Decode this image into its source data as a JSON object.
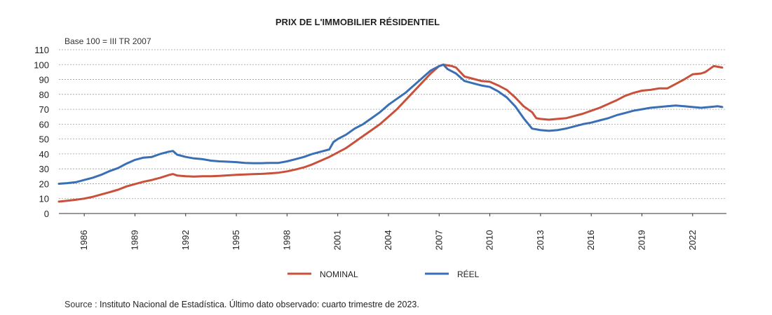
{
  "chart_data": {
    "type": "line",
    "title": "PRIX DE L'IMMOBILIER RÉSIDENTIEL",
    "subtitle": "Base 100 = III TR 2007",
    "source_label": "Source :",
    "source_text": "Instituto Nacional de Estadística. Último dato observado: cuarto trimestre de 2023.",
    "ylim": [
      0,
      110
    ],
    "yticks": [
      0,
      10,
      20,
      30,
      40,
      50,
      60,
      70,
      80,
      90,
      100,
      110
    ],
    "xlim": [
      1984.5,
      2024.0
    ],
    "xticks": [
      "1986",
      "1989",
      "1992",
      "1995",
      "1998",
      "2001",
      "2004",
      "2007",
      "2010",
      "2013",
      "2016",
      "2019",
      "2022"
    ],
    "grid": true,
    "legend": "bottom",
    "series": [
      {
        "name": "NOMINAL",
        "color": "#C9503A",
        "points": [
          [
            1984.5,
            8
          ],
          [
            1985,
            8.6
          ],
          [
            1985.5,
            9.2
          ],
          [
            1986,
            10
          ],
          [
            1986.5,
            11.2
          ],
          [
            1987,
            12.8
          ],
          [
            1987.5,
            14.3
          ],
          [
            1988,
            16
          ],
          [
            1988.5,
            18.2
          ],
          [
            1989,
            19.8
          ],
          [
            1989.5,
            21.3
          ],
          [
            1990,
            22.5
          ],
          [
            1990.5,
            24
          ],
          [
            1991,
            25.8
          ],
          [
            1991.25,
            26.5
          ],
          [
            1991.5,
            25.5
          ],
          [
            1992,
            25
          ],
          [
            1992.5,
            24.8
          ],
          [
            1993,
            25
          ],
          [
            1993.5,
            25
          ],
          [
            1994,
            25.3
          ],
          [
            1994.5,
            25.6
          ],
          [
            1995,
            26
          ],
          [
            1995.5,
            26.2
          ],
          [
            1996,
            26.4
          ],
          [
            1996.5,
            26.6
          ],
          [
            1997,
            27
          ],
          [
            1997.5,
            27.4
          ],
          [
            1998,
            28.3
          ],
          [
            1998.5,
            29.5
          ],
          [
            1999,
            31
          ],
          [
            1999.5,
            33
          ],
          [
            2000,
            35.5
          ],
          [
            2000.5,
            38
          ],
          [
            2001,
            41
          ],
          [
            2001.5,
            44
          ],
          [
            2002,
            48
          ],
          [
            2002.5,
            52
          ],
          [
            2003,
            56
          ],
          [
            2003.5,
            60
          ],
          [
            2004,
            65
          ],
          [
            2004.5,
            70
          ],
          [
            2005,
            76
          ],
          [
            2005.5,
            82
          ],
          [
            2006,
            88
          ],
          [
            2006.5,
            94
          ],
          [
            2007,
            99
          ],
          [
            2007.25,
            100
          ],
          [
            2007.75,
            99
          ],
          [
            2008,
            98
          ],
          [
            2008.5,
            92
          ],
          [
            2009,
            90.5
          ],
          [
            2009.5,
            89
          ],
          [
            2010,
            88.5
          ],
          [
            2010.5,
            86
          ],
          [
            2011,
            83
          ],
          [
            2011.5,
            78
          ],
          [
            2012,
            72
          ],
          [
            2012.5,
            68
          ],
          [
            2012.75,
            64
          ],
          [
            2013,
            63.5
          ],
          [
            2013.5,
            63
          ],
          [
            2014,
            63.5
          ],
          [
            2014.5,
            64
          ],
          [
            2015,
            65.5
          ],
          [
            2015.5,
            67
          ],
          [
            2016,
            69
          ],
          [
            2016.5,
            71
          ],
          [
            2017,
            73.5
          ],
          [
            2017.5,
            76
          ],
          [
            2018,
            79
          ],
          [
            2018.5,
            81
          ],
          [
            2019,
            82.5
          ],
          [
            2019.5,
            83
          ],
          [
            2020,
            84
          ],
          [
            2020.5,
            84
          ],
          [
            2021,
            87
          ],
          [
            2021.5,
            90
          ],
          [
            2022,
            93.5
          ],
          [
            2022.5,
            94
          ],
          [
            2022.75,
            95
          ],
          [
            2023,
            97
          ],
          [
            2023.25,
            99
          ],
          [
            2023.75,
            98
          ]
        ]
      },
      {
        "name": "RÉEL",
        "color": "#3A6FB5",
        "points": [
          [
            1984.5,
            20
          ],
          [
            1985,
            20.4
          ],
          [
            1985.5,
            21
          ],
          [
            1986,
            22.5
          ],
          [
            1986.5,
            24
          ],
          [
            1987,
            26
          ],
          [
            1987.5,
            28.5
          ],
          [
            1988,
            30.5
          ],
          [
            1988.5,
            33.5
          ],
          [
            1989,
            36
          ],
          [
            1989.5,
            37.5
          ],
          [
            1990,
            38
          ],
          [
            1990.5,
            40
          ],
          [
            1991,
            41.5
          ],
          [
            1991.25,
            42
          ],
          [
            1991.5,
            39.5
          ],
          [
            1992,
            38
          ],
          [
            1992.5,
            37
          ],
          [
            1993,
            36.5
          ],
          [
            1993.5,
            35.5
          ],
          [
            1994,
            35
          ],
          [
            1994.5,
            34.8
          ],
          [
            1995,
            34.5
          ],
          [
            1995.5,
            34
          ],
          [
            1996,
            33.8
          ],
          [
            1996.5,
            33.8
          ],
          [
            1997,
            34
          ],
          [
            1997.5,
            34
          ],
          [
            1998,
            35
          ],
          [
            1998.5,
            36.5
          ],
          [
            1999,
            38
          ],
          [
            1999.5,
            40
          ],
          [
            2000,
            41.5
          ],
          [
            2000.5,
            43
          ],
          [
            2000.75,
            48
          ],
          [
            2001,
            50
          ],
          [
            2001.5,
            53
          ],
          [
            2002,
            57
          ],
          [
            2002.5,
            60
          ],
          [
            2003,
            64
          ],
          [
            2003.5,
            68
          ],
          [
            2004,
            73
          ],
          [
            2004.5,
            77
          ],
          [
            2005,
            81
          ],
          [
            2005.5,
            86
          ],
          [
            2006,
            91
          ],
          [
            2006.5,
            96
          ],
          [
            2007,
            99
          ],
          [
            2007.25,
            100
          ],
          [
            2007.5,
            97
          ],
          [
            2008,
            94
          ],
          [
            2008.5,
            89
          ],
          [
            2009,
            87.5
          ],
          [
            2009.5,
            86
          ],
          [
            2010,
            85
          ],
          [
            2010.5,
            82
          ],
          [
            2011,
            78
          ],
          [
            2011.5,
            72
          ],
          [
            2012,
            64
          ],
          [
            2012.5,
            57
          ],
          [
            2013,
            56
          ],
          [
            2013.5,
            55.5
          ],
          [
            2014,
            56
          ],
          [
            2014.5,
            57
          ],
          [
            2015,
            58.5
          ],
          [
            2015.5,
            60
          ],
          [
            2016,
            61
          ],
          [
            2016.5,
            62.5
          ],
          [
            2017,
            64
          ],
          [
            2017.5,
            66
          ],
          [
            2018,
            67.5
          ],
          [
            2018.5,
            69
          ],
          [
            2019,
            70
          ],
          [
            2019.5,
            71
          ],
          [
            2020,
            71.5
          ],
          [
            2020.5,
            72
          ],
          [
            2021,
            72.5
          ],
          [
            2021.5,
            72
          ],
          [
            2022,
            71.5
          ],
          [
            2022.5,
            71
          ],
          [
            2023,
            71.5
          ],
          [
            2023.5,
            72
          ],
          [
            2023.75,
            71.5
          ]
        ]
      }
    ]
  }
}
